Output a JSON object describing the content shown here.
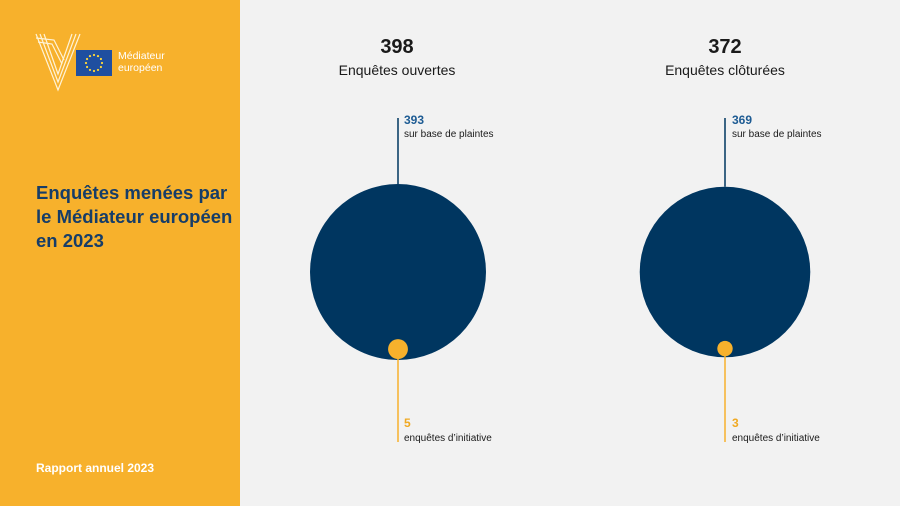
{
  "sidebar": {
    "logo": {
      "line1": "Médiateur",
      "line2": "européen",
      "flag_color": "#1f4fa0"
    },
    "title": "Enquêtes menées par le Médiateur européen en 2023",
    "footer": "Rapport annuel 2023",
    "background": "#f7b12c"
  },
  "colors": {
    "complaints": "#003660",
    "initiative": "#f7b12c",
    "complaints_text": "#1d5b93",
    "initiative_text": "#f0a921"
  },
  "chart_data": [
    {
      "type": "bubble",
      "total": "398",
      "label": "Enquêtes ouvertes",
      "series": [
        {
          "value": 393,
          "text": "sur base de plaintes"
        },
        {
          "value": 5,
          "text": "enquêtes d’initiative"
        }
      ]
    },
    {
      "type": "bubble",
      "total": "372",
      "label": "Enquêtes clôturées",
      "series": [
        {
          "value": 369,
          "text": "sur base de plaintes"
        },
        {
          "value": 3,
          "text": "enquêtes d’initiative"
        }
      ]
    }
  ]
}
